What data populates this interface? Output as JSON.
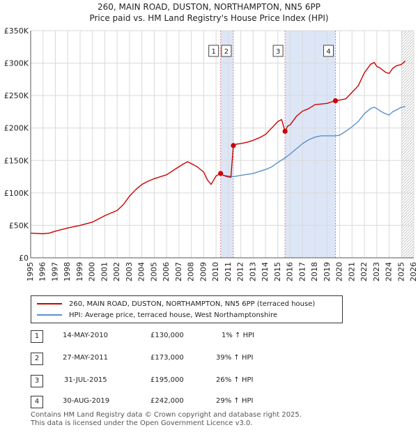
{
  "title_line1": "260, MAIN ROAD, DUSTON, NORTHAMPTON, NN5 6PP",
  "title_line2": "Price paid vs. HM Land Registry's House Price Index (HPI)",
  "colors": {
    "price": "#cc0000",
    "hpi": "#5b8fd0",
    "shade": "#dde6f6",
    "marker": "#e08080"
  },
  "chart_data": {
    "type": "line",
    "xlim": [
      1995,
      2026
    ],
    "ylim": [
      0,
      350000
    ],
    "y_ticks": [
      0,
      50000,
      100000,
      150000,
      200000,
      250000,
      300000,
      350000
    ],
    "y_tick_labels": [
      "£0",
      "£50K",
      "£100K",
      "£150K",
      "£200K",
      "£250K",
      "£300K",
      "£350K"
    ],
    "x_ticks": [
      1995,
      1996,
      1997,
      1998,
      1999,
      2000,
      2001,
      2002,
      2003,
      2004,
      2005,
      2006,
      2007,
      2008,
      2009,
      2010,
      2011,
      2012,
      2013,
      2014,
      2015,
      2016,
      2017,
      2018,
      2019,
      2020,
      2021,
      2022,
      2023,
      2024,
      2025,
      2026
    ],
    "series": [
      {
        "name": "260, MAIN ROAD, DUSTON, NORTHAMPTON, NN5 6PP (terraced house)",
        "x": [
          1995,
          1996,
          1996.5,
          1997,
          1998,
          1999,
          2000,
          2000.5,
          2001,
          2002,
          2002.5,
          2003,
          2003.5,
          2004,
          2004.5,
          2005,
          2006,
          2006.8,
          2007.4,
          2007.7,
          2008,
          2008.5,
          2009,
          2009.3,
          2009.6,
          2010,
          2010.37,
          2010.6,
          2010.9,
          2011.2,
          2011.4,
          2011.6,
          2012,
          2012.5,
          2013,
          2013.5,
          2014,
          2014.5,
          2015,
          2015.3,
          2015.58,
          2015.8,
          2016,
          2016.5,
          2017,
          2017.5,
          2018,
          2018.5,
          2019,
          2019.3,
          2019.66,
          2020,
          2020.5,
          2021,
          2021.5,
          2022,
          2022.5,
          2022.8,
          2023,
          2023.3,
          2023.7,
          2024,
          2024.3,
          2024.6,
          2025,
          2025.3
        ],
        "values": [
          38000,
          37000,
          38000,
          41000,
          46000,
          50000,
          55000,
          60000,
          65000,
          73000,
          82000,
          95000,
          105000,
          113000,
          118000,
          122000,
          128000,
          138000,
          145000,
          148000,
          145000,
          140000,
          132000,
          120000,
          113000,
          126000,
          130000,
          127000,
          125000,
          124000,
          173000,
          175000,
          176000,
          178000,
          181000,
          185000,
          190000,
          200000,
          210000,
          213000,
          195000,
          203000,
          205000,
          218000,
          226000,
          230000,
          236000,
          237000,
          238000,
          240000,
          242000,
          243000,
          245000,
          255000,
          265000,
          285000,
          298000,
          301000,
          295000,
          292000,
          286000,
          284000,
          292000,
          296000,
          298000,
          303000
        ]
      },
      {
        "name": "HPI: Average price, terraced house, West Northamptonshire",
        "x": [
          2010.37,
          2010.6,
          2011,
          2011.4,
          2012,
          2013,
          2013.5,
          2014,
          2014.5,
          2015,
          2015.58,
          2016,
          2016.5,
          2017,
          2017.5,
          2018,
          2018.5,
          2019,
          2019.66,
          2020,
          2020.5,
          2021,
          2021.5,
          2022,
          2022.5,
          2022.8,
          2023,
          2023.3,
          2023.7,
          2024,
          2024.3,
          2024.6,
          2025,
          2025.3
        ],
        "values": [
          128000,
          127000,
          126000,
          125000,
          127000,
          130000,
          133000,
          136000,
          140000,
          147000,
          154000,
          160000,
          168000,
          176000,
          182000,
          186000,
          188000,
          188000,
          188000,
          189000,
          195000,
          202000,
          210000,
          222000,
          230000,
          232000,
          230000,
          226000,
          222000,
          220000,
          225000,
          228000,
          232000,
          233000
        ]
      }
    ],
    "transactions_markers": [
      {
        "num": "1",
        "x": 2010.37,
        "y": 130000
      },
      {
        "num": "2",
        "x": 2011.4,
        "y": 173000
      },
      {
        "num": "3",
        "x": 2015.58,
        "y": 195000
      },
      {
        "num": "4",
        "x": 2019.66,
        "y": 242000
      }
    ],
    "shaded_ranges": [
      [
        2010.37,
        2011.4
      ],
      [
        2015.58,
        2019.66
      ]
    ],
    "future_hatch_from": 2025.0
  },
  "legend": {
    "price_label": "260, MAIN ROAD, DUSTON, NORTHAMPTON, NN5 6PP (terraced house)",
    "hpi_label": "HPI: Average price, terraced house, West Northamptonshire"
  },
  "transactions": [
    {
      "num": "1",
      "date": "14-MAY-2010",
      "price": "£130,000",
      "hpi": "1% ↑ HPI"
    },
    {
      "num": "2",
      "date": "27-MAY-2011",
      "price": "£173,000",
      "hpi": "39% ↑ HPI"
    },
    {
      "num": "3",
      "date": "31-JUL-2015",
      "price": "£195,000",
      "hpi": "26% ↑ HPI"
    },
    {
      "num": "4",
      "date": "30-AUG-2019",
      "price": "£242,000",
      "hpi": "29% ↑ HPI"
    }
  ],
  "footer_line1": "Contains HM Land Registry data © Crown copyright and database right 2025.",
  "footer_line2": "This data is licensed under the Open Government Licence v3.0."
}
